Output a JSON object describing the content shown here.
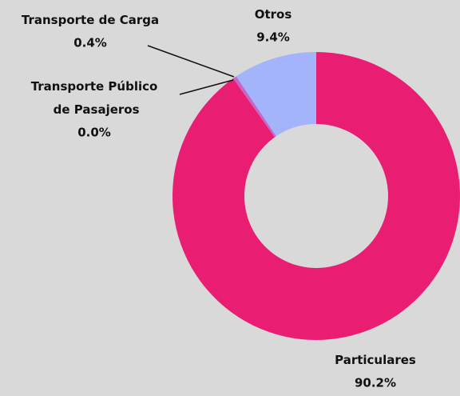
{
  "chart_data": {
    "type": "donut",
    "categories": [
      "Particulares",
      "Transporte Público de Pasajeros",
      "Transporte de Carga",
      "Otros"
    ],
    "values": [
      90.2,
      0.0,
      0.4,
      9.4
    ],
    "value_labels": [
      "90.2%",
      "0.0%",
      "0.4%",
      "9.4%"
    ],
    "colors": [
      "#e91e73",
      "#f06bb0",
      "#c667c8",
      "#a3b4fb"
    ]
  }
}
